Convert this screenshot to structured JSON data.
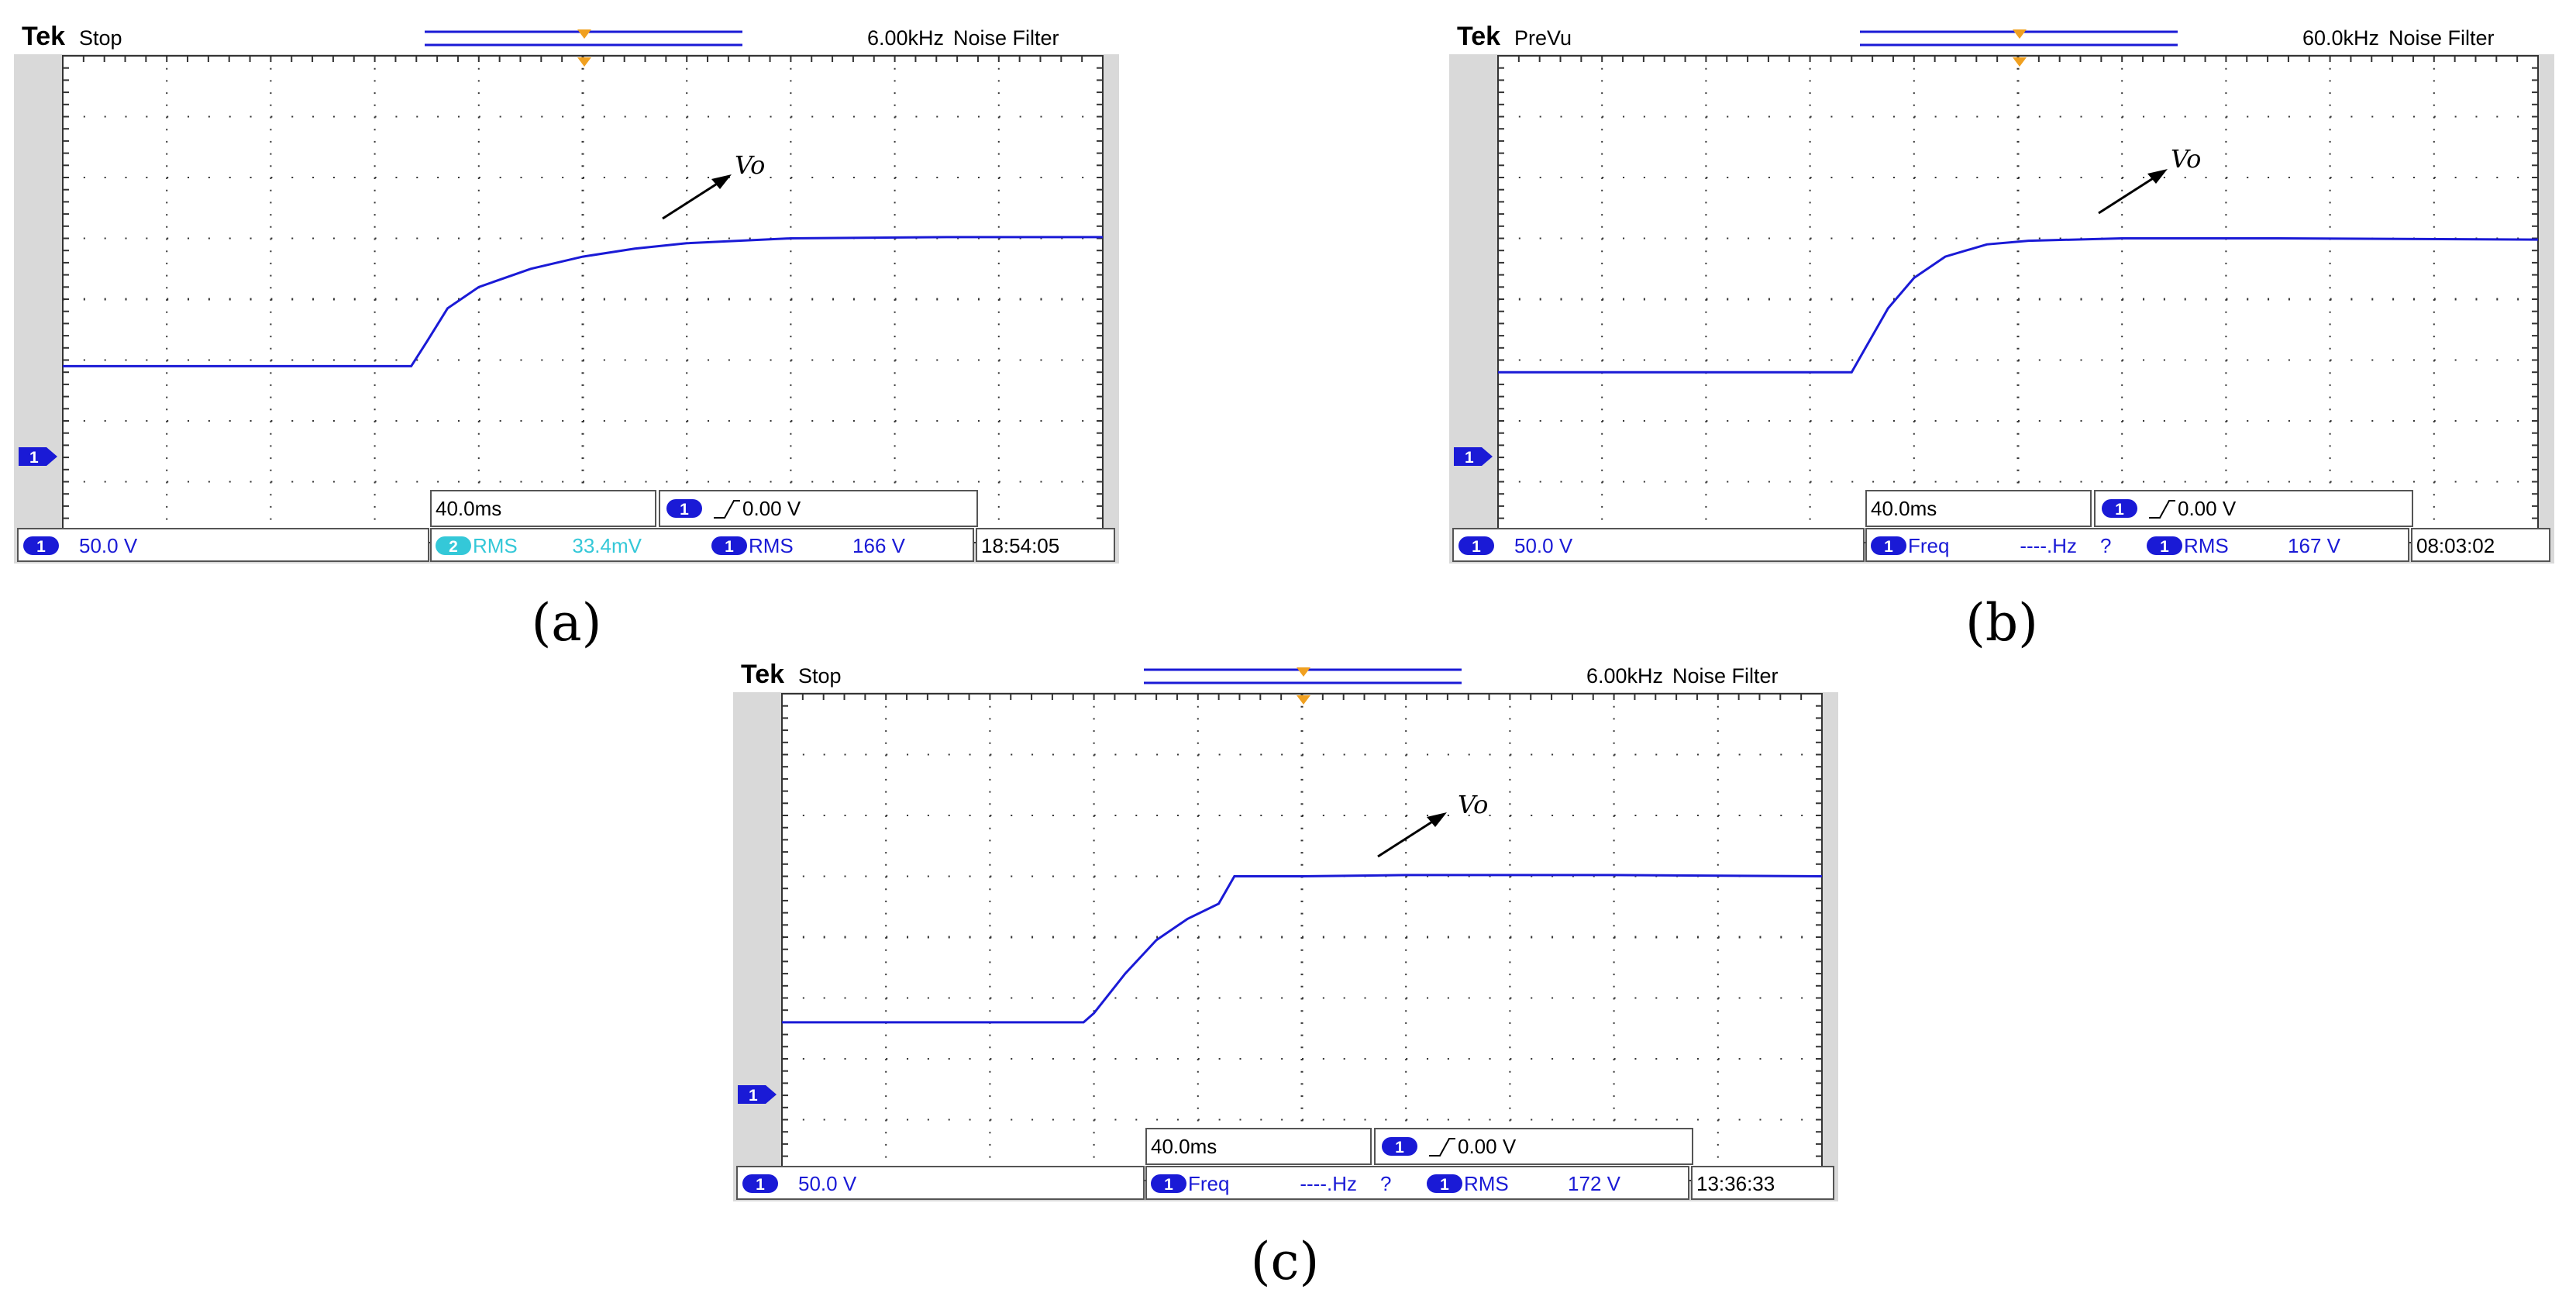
{
  "colors": {
    "trace": "#1a1ad6",
    "screen_bg": "#ffffff",
    "frame": "#d9d9d9",
    "trigger_marker": "#f0a020",
    "ch2_text": "#34c8d8"
  },
  "icons": {
    "channel_badge": "channel-1-badge",
    "trigger_marker": "trigger-position-icon",
    "edge_icon": "rising-edge-icon"
  },
  "panels": [
    {
      "caption": "(a)",
      "brand": "Tek",
      "status": "Stop",
      "filter": "6.00kHz",
      "filter_label": "Noise Filter",
      "timebase": "40.0ms",
      "trigger_channel": "1",
      "trigger_level": "0.00 V",
      "ch1_scale": "50.0 V",
      "channel_marker": "1",
      "meas1_channel": "2",
      "meas1_name": "RMS",
      "meas1_value": "33.4mV",
      "meas1_flag": "",
      "meas2_channel": "1",
      "meas2_name": "RMS",
      "meas2_value": "166 V",
      "clock": "18:54:05",
      "annotation": "Vo"
    },
    {
      "caption": "(b)",
      "brand": "Tek",
      "status": "PreVu",
      "filter": "60.0kHz",
      "filter_label": "Noise Filter",
      "timebase": "40.0ms",
      "trigger_channel": "1",
      "trigger_level": "0.00 V",
      "ch1_scale": "50.0 V",
      "channel_marker": "1",
      "meas1_channel": "1",
      "meas1_name": "Freq",
      "meas1_value": "----.Hz",
      "meas1_flag": "?",
      "meas2_channel": "1",
      "meas2_name": "RMS",
      "meas2_value": "167 V",
      "clock": "08:03:02",
      "annotation": "Vo"
    },
    {
      "caption": "(c)",
      "brand": "Tek",
      "status": "Stop",
      "filter": "6.00kHz",
      "filter_label": "Noise Filter",
      "timebase": "40.0ms",
      "trigger_channel": "1",
      "trigger_level": "0.00 V",
      "ch1_scale": "50.0 V",
      "channel_marker": "1",
      "meas1_channel": "1",
      "meas1_name": "Freq",
      "meas1_value": "----.Hz",
      "meas1_flag": "?",
      "meas2_channel": "1",
      "meas2_name": "RMS",
      "meas2_value": "172 V",
      "clock": "13:36:33",
      "annotation": "Vo"
    }
  ],
  "chart_data": [
    {
      "type": "line",
      "panel": "(a)",
      "xlabel": "",
      "ylabel": "",
      "x_unit": "div",
      "y_unit": "div",
      "xlim": [
        0,
        10
      ],
      "ylim": [
        0,
        8
      ],
      "grid": true,
      "series": [
        {
          "points": [
            [
              0,
              2.9
            ],
            [
              3.35,
              2.9
            ],
            [
              3.5,
              3.3
            ],
            [
              3.7,
              3.85
            ],
            [
              4.0,
              4.2
            ],
            [
              4.5,
              4.5
            ],
            [
              5.0,
              4.7
            ],
            [
              5.5,
              4.83
            ],
            [
              6.0,
              4.92
            ],
            [
              7.0,
              5.0
            ],
            [
              8.5,
              5.02
            ],
            [
              10,
              5.02
            ]
          ]
        }
      ]
    },
    {
      "type": "line",
      "panel": "(b)",
      "xlabel": "",
      "ylabel": "",
      "x_unit": "div",
      "y_unit": "div",
      "xlim": [
        0,
        10
      ],
      "ylim": [
        0,
        8
      ],
      "grid": true,
      "series": [
        {
          "points": [
            [
              0,
              2.8
            ],
            [
              3.4,
              2.8
            ],
            [
              3.55,
              3.25
            ],
            [
              3.75,
              3.85
            ],
            [
              4.0,
              4.35
            ],
            [
              4.3,
              4.7
            ],
            [
              4.7,
              4.9
            ],
            [
              5.1,
              4.96
            ],
            [
              6.0,
              5.0
            ],
            [
              7.5,
              5.0
            ],
            [
              10,
              4.98
            ]
          ]
        }
      ]
    },
    {
      "type": "line",
      "panel": "(c)",
      "xlabel": "",
      "ylabel": "",
      "x_unit": "div",
      "y_unit": "div",
      "xlim": [
        0,
        10
      ],
      "ylim": [
        0,
        8
      ],
      "grid": true,
      "series": [
        {
          "points": [
            [
              0,
              2.6
            ],
            [
              2.9,
              2.6
            ],
            [
              3.0,
              2.75
            ],
            [
              3.3,
              3.4
            ],
            [
              3.6,
              3.95
            ],
            [
              3.9,
              4.3
            ],
            [
              4.2,
              4.55
            ],
            [
              4.35,
              5.0
            ],
            [
              5.0,
              5.0
            ],
            [
              6.0,
              5.02
            ],
            [
              8.0,
              5.02
            ],
            [
              10,
              5.0
            ]
          ]
        }
      ]
    }
  ]
}
